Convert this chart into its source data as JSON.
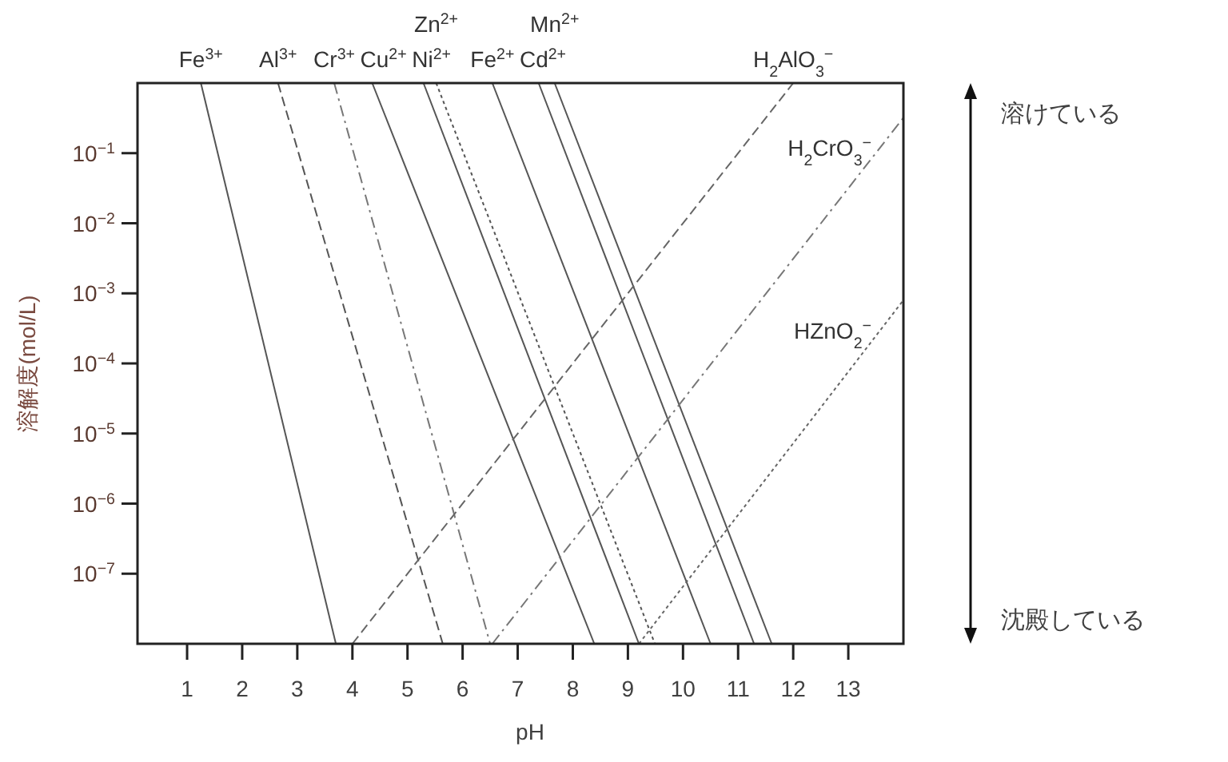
{
  "chart_data": {
    "type": "line",
    "xlabel": "pH",
    "ylabel": "溶解度(mol/L)",
    "log": "y",
    "xlim": [
      0.1,
      14
    ],
    "ylim": [
      1e-08,
      1
    ],
    "xticks": [
      1,
      2,
      3,
      4,
      5,
      6,
      7,
      8,
      9,
      10,
      11,
      12,
      13
    ],
    "yticks": [
      {
        "value": 0.1,
        "label": "10$^{−1}$"
      },
      {
        "value": 0.01,
        "label": "10$^{−2}$"
      },
      {
        "value": 0.001,
        "label": "10$^{−3}$"
      },
      {
        "value": 0.0001,
        "label": "10$^{−4}$"
      },
      {
        "value": 1e-05,
        "label": "10$^{−5}$"
      },
      {
        "value": 1e-06,
        "label": "10$^{−6}$"
      },
      {
        "value": 1e-07,
        "label": "10$^{−7}$"
      }
    ],
    "series": [
      {
        "name": "Fe$^{3+}$",
        "color": "#555555",
        "line_style": "solid",
        "x": [
          1.25,
          3.7
        ],
        "values": [
          1,
          1e-08
        ]
      },
      {
        "name": "Al$^{3+}$",
        "color": "#555555",
        "line_style": "dashed",
        "x": [
          2.65,
          5.64
        ],
        "values": [
          1,
          1e-08
        ]
      },
      {
        "name": "Cr$^{3+}$",
        "color": "#777777",
        "line_style": "dashdot",
        "x": [
          3.67,
          6.5
        ],
        "values": [
          1,
          1e-08
        ]
      },
      {
        "name": "Cu$^{2+}$",
        "color": "#555555",
        "line_style": "solid",
        "x": [
          4.36,
          8.39
        ],
        "values": [
          1,
          1e-08
        ]
      },
      {
        "name": "Ni$^{2+}$",
        "color": "#555555",
        "line_style": "solid",
        "x": [
          5.29,
          9.2
        ],
        "values": [
          1,
          1e-08
        ]
      },
      {
        "name": "Zn$^{2+}$",
        "color": "#555555",
        "line_style": "dotted",
        "x": [
          5.52,
          9.49
        ],
        "values": [
          1,
          1e-08
        ]
      },
      {
        "name": "Fe$^{2+}$",
        "color": "#555555",
        "line_style": "solid",
        "x": [
          6.54,
          10.5
        ],
        "values": [
          1,
          1e-08
        ]
      },
      {
        "name": "Cd$^{2+}$",
        "color": "#555555",
        "line_style": "solid",
        "x": [
          7.38,
          11.29
        ],
        "values": [
          1,
          1e-08
        ]
      },
      {
        "name": "Mn$^{2+}$",
        "color": "#555555",
        "line_style": "solid",
        "x": [
          7.67,
          11.61
        ],
        "values": [
          1,
          1e-08
        ]
      },
      {
        "name": "H$_{2}$AlO$_{3}$$^{−}$",
        "color": "#666666",
        "line_style": "dashed",
        "x": [
          4.0,
          12.0
        ],
        "values": [
          1e-08,
          1
        ]
      },
      {
        "name": "H$_{2}$CrO$_{3}$$^{−}$",
        "color": "#777777",
        "line_style": "dashdot",
        "x": [
          6.54,
          14
        ],
        "values": [
          1e-08,
          0.32
        ]
      },
      {
        "name": "HZnO$_{2}$$^{−}$",
        "color": "#666666",
        "line_style": "dotted",
        "x": [
          9.2,
          14
        ],
        "values": [
          1e-08,
          0.0008
        ]
      }
    ],
    "annotations": [
      "溶けている",
      "沈殿している"
    ]
  }
}
